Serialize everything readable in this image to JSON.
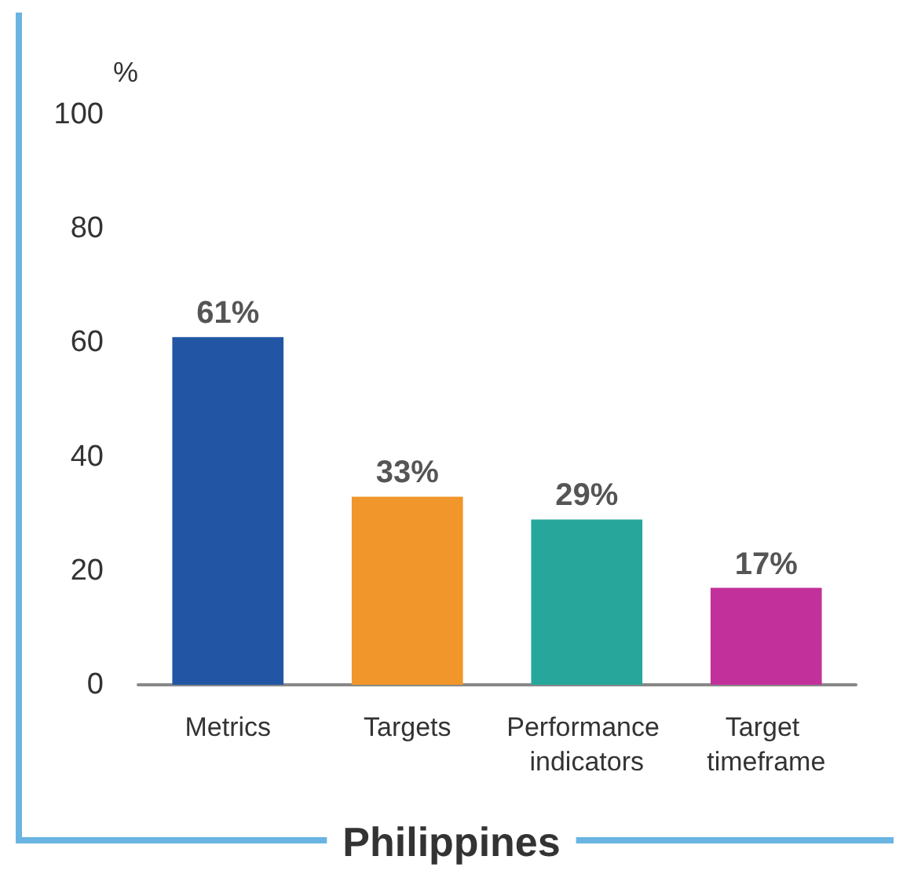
{
  "chart_data": {
    "type": "bar",
    "title": "Philippines",
    "ylabel": "%",
    "categories": [
      "Metrics",
      "Targets",
      "Performance indicators",
      "Target timeframe"
    ],
    "values": [
      61,
      33,
      29,
      17
    ],
    "colors": [
      "#2256a4",
      "#f0962a",
      "#27a79c",
      "#c2319b"
    ],
    "value_labels": [
      "61%",
      "33%",
      "29%",
      "17%"
    ],
    "ylim": [
      0,
      100
    ],
    "yticks": [
      0,
      20,
      40,
      60,
      80,
      100
    ],
    "grid": false
  }
}
